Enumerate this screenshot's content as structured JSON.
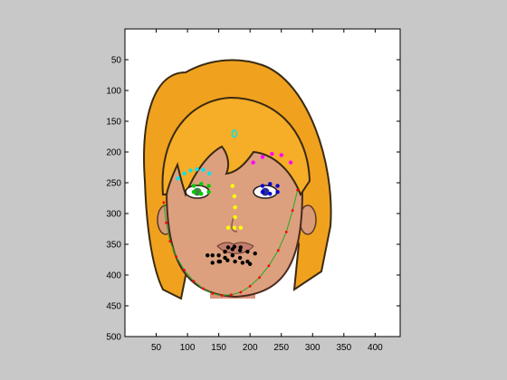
{
  "chart_data": {
    "type": "scatter",
    "title": "",
    "xlabel": "",
    "ylabel": "",
    "xlim": [
      0,
      440
    ],
    "ylim": [
      500,
      0
    ],
    "y_reversed": true,
    "grid": false,
    "xticks": [
      50,
      100,
      150,
      200,
      250,
      300,
      350,
      400
    ],
    "yticks": [
      50,
      100,
      150,
      200,
      250,
      300,
      350,
      400,
      450,
      500
    ],
    "background_image": "cartoon-face-illustration",
    "series": [
      {
        "name": "left-eyebrow",
        "color": "#00e5ee",
        "x": [
          85,
          95,
          105,
          115,
          125,
          135
        ],
        "y": [
          243,
          235,
          230,
          228,
          229,
          235
        ]
      },
      {
        "name": "right-eyebrow",
        "color": "#ff00ff",
        "x": [
          205,
          220,
          235,
          250,
          265
        ],
        "y": [
          217,
          208,
          203,
          205,
          217
        ]
      },
      {
        "name": "left-eye",
        "color": "#00cc00",
        "x": [
          110,
          122,
          134,
          110,
          122,
          134
        ],
        "y": [
          255,
          252,
          255,
          265,
          268,
          265
        ]
      },
      {
        "name": "right-eye",
        "color": "#0000cc",
        "x": [
          220,
          232,
          244,
          220,
          232,
          244
        ],
        "y": [
          255,
          252,
          255,
          265,
          268,
          265
        ]
      },
      {
        "name": "nose",
        "color": "#ffff00",
        "x": [
          172,
          175,
          176,
          176,
          165,
          175,
          185
        ],
        "y": [
          255,
          272,
          290,
          306,
          323,
          323,
          323
        ]
      },
      {
        "name": "mouth",
        "color": "#000000",
        "x": [
          132,
          140,
          150,
          160,
          172,
          184,
          196,
          208,
          150,
          160,
          172,
          184,
          196,
          140,
          152,
          164,
          176,
          188,
          200,
          165,
          175,
          185
        ],
        "y": [
          368,
          368,
          368,
          362,
          358,
          360,
          362,
          365,
          378,
          372,
          368,
          372,
          378,
          380,
          378,
          376,
          378,
          380,
          382,
          355,
          354,
          355
        ]
      },
      {
        "name": "jawline",
        "color": "#ff0000",
        "x": [
          62,
          66,
          72,
          82,
          95,
          110,
          125,
          140,
          155,
          170,
          185,
          200,
          215,
          230,
          245,
          258,
          268,
          276
        ],
        "y": [
          282,
          315,
          345,
          370,
          392,
          410,
          422,
          430,
          433,
          432,
          428,
          418,
          404,
          385,
          360,
          330,
          295,
          262
        ]
      },
      {
        "name": "forehead-marker",
        "color": "#00e5ee",
        "x": [
          175
        ],
        "y": [
          170
        ]
      }
    ]
  }
}
